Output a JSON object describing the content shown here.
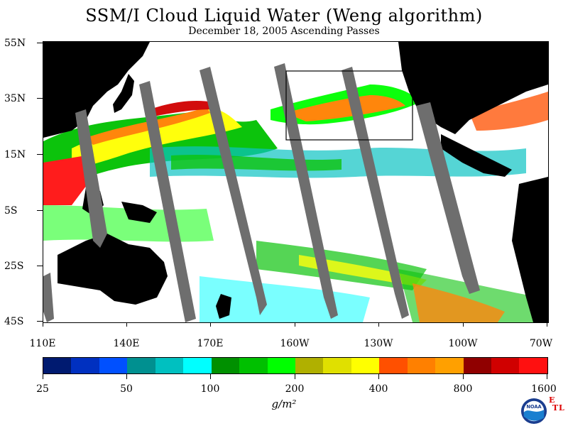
{
  "title": "SSM/I Cloud Liquid Water (Weng algorithm)",
  "subtitle": "December 18, 2005  Ascending Passes",
  "map": {
    "lat_labels": [
      "55N",
      "35N",
      "15N",
      "5S",
      "25S",
      "45S"
    ],
    "lon_labels": [
      "110E",
      "140E",
      "170E",
      "160W",
      "130W",
      "100W",
      "70W"
    ],
    "colors": {
      "land": "#000000",
      "no_data": "#6e6e6e",
      "clear": "#ffffff",
      "box": "#000000"
    }
  },
  "colorbar": {
    "colors": [
      "#001a70",
      "#0030c0",
      "#0050ff",
      "#009090",
      "#00c0c0",
      "#00ffff",
      "#009000",
      "#00c000",
      "#00ff00",
      "#b0b000",
      "#e0e000",
      "#ffff00",
      "#ff5000",
      "#ff8000",
      "#ffa000",
      "#900000",
      "#d00000",
      "#ff1010"
    ],
    "tick_labels": [
      "25",
      "50",
      "100",
      "200",
      "400",
      "800",
      "1600"
    ]
  },
  "units_label": "g/m²",
  "logo": {
    "name": "NOAA",
    "etl_letters": [
      "E",
      "T",
      "L"
    ]
  }
}
